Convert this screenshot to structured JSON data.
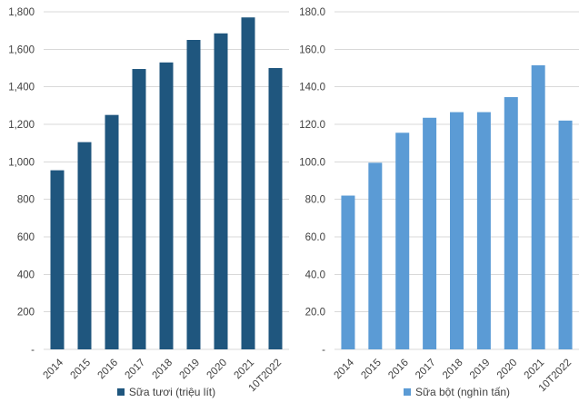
{
  "page": {
    "background": "#FFFFFF"
  },
  "colors": {
    "grid": "#D9D9D9",
    "axis_text": "#404040",
    "fresh_milk_bar": "#1F567E",
    "powder_milk_bar": "#5B9BD5"
  },
  "chart_data": [
    {
      "type": "bar",
      "title": "",
      "categories": [
        "2014",
        "2015",
        "2016",
        "2017",
        "2018",
        "2019",
        "2020",
        "2021",
        "10T2022"
      ],
      "values": [
        955,
        1105,
        1250,
        1495,
        1530,
        1650,
        1685,
        1770,
        1500
      ],
      "ylim": [
        0,
        1800
      ],
      "ytick_step": 200,
      "ytick_labels": [
        "-",
        "200",
        "400",
        "600",
        "800",
        "1,000",
        "1,200",
        "1,400",
        "1,600",
        "1,800"
      ],
      "xlabel": "",
      "ylabel": "",
      "grid": true,
      "legend": "Sữa tươi (triệu lít)",
      "legend_position": "bottom",
      "bar_color": "#1F567E"
    },
    {
      "type": "bar",
      "title": "",
      "categories": [
        "2014",
        "2015",
        "2016",
        "2017",
        "2018",
        "2019",
        "2020",
        "2021",
        "10T2022"
      ],
      "values": [
        82.0,
        99.5,
        115.5,
        123.5,
        126.5,
        126.5,
        134.5,
        151.5,
        122.0
      ],
      "ylim": [
        0,
        180
      ],
      "ytick_step": 20,
      "ytick_labels": [
        "-",
        "20.0",
        "40.0",
        "60.0",
        "80.0",
        "100.0",
        "120.0",
        "140.0",
        "160.0",
        "180.0"
      ],
      "xlabel": "",
      "ylabel": "",
      "grid": true,
      "legend": "Sữa bột (nghìn tấn)",
      "legend_position": "bottom",
      "bar_color": "#5B9BD5"
    }
  ]
}
